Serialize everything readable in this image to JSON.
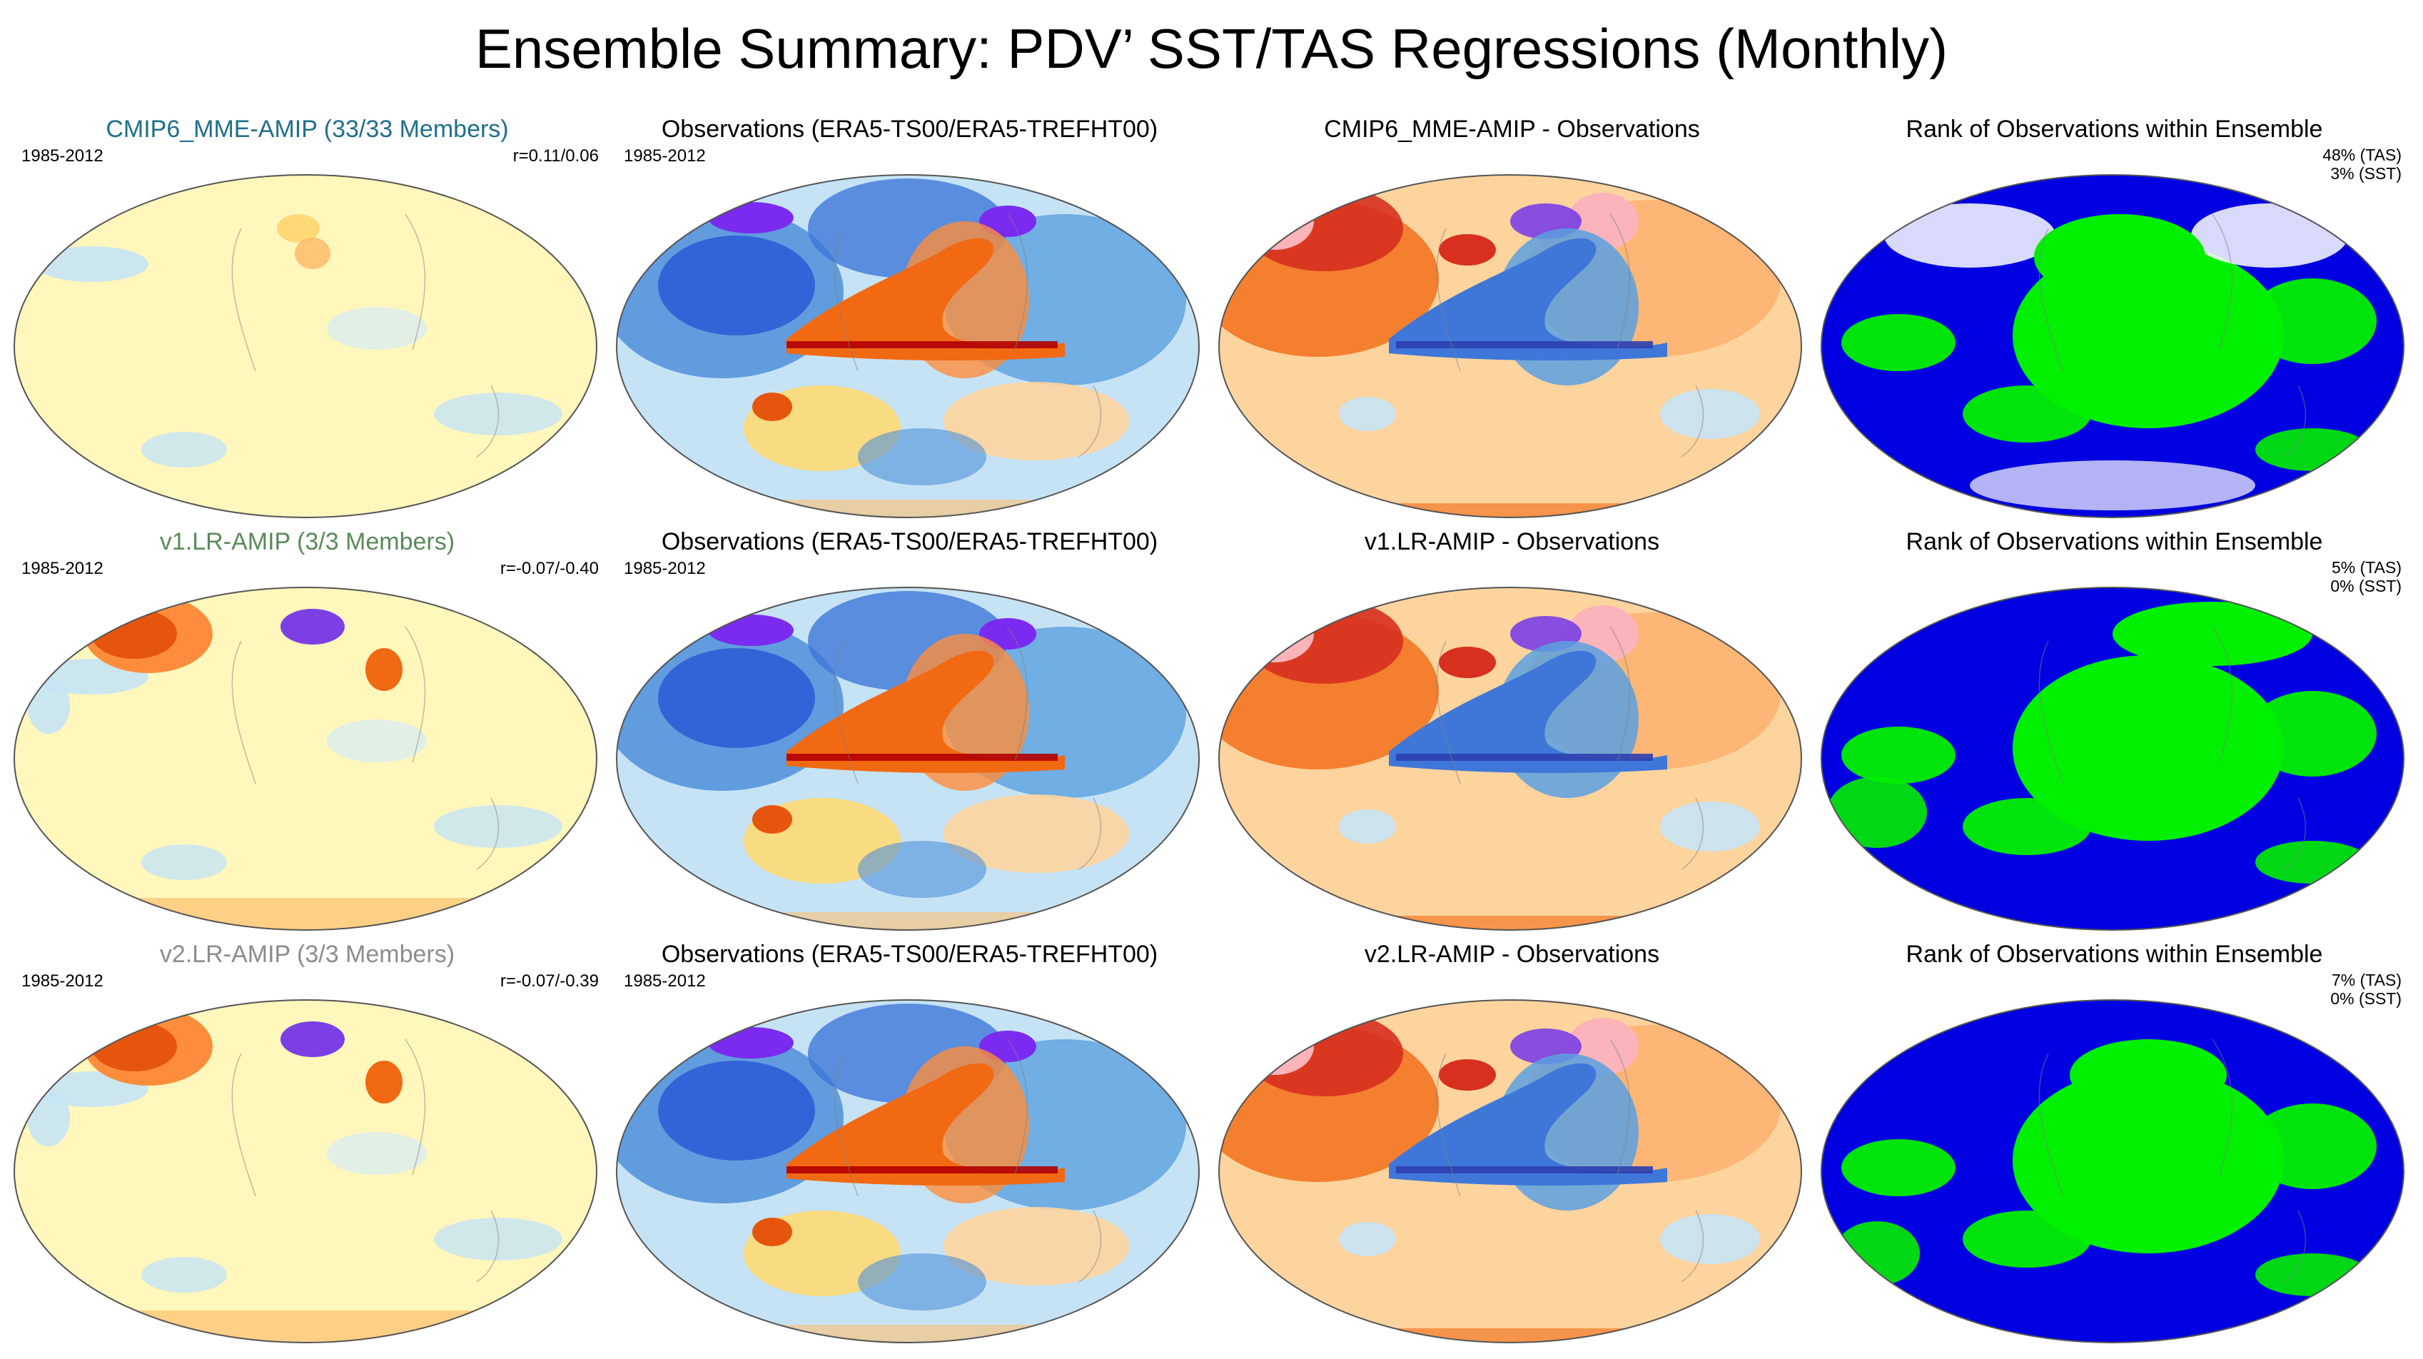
{
  "title": "Ensemble Summary: PDV’ SST/TAS Regressions (Monthly)",
  "colors": {
    "cmip6": "#1f6f8b",
    "v1": "#5a8a5a",
    "v2": "#8c8c8c"
  },
  "rows": [
    {
      "model": {
        "title": "CMIP6_MME-AMIP (33/33 Members)",
        "period": "1985-2012",
        "corr": "r=0.11/0.06"
      },
      "obs": {
        "title": "Observations (ERA5-TS00/ERA5-TREFHT00)",
        "period": "1985-2012"
      },
      "diff": {
        "title": "CMIP6_MME-AMIP - Observations"
      },
      "rank": {
        "title": "Rank of Observations within Ensemble",
        "tas": "48% (TAS)",
        "sst": "3% (SST)"
      }
    },
    {
      "model": {
        "title": "v1.LR-AMIP (3/3 Members)",
        "period": "1985-2012",
        "corr": "r=-0.07/-0.40"
      },
      "obs": {
        "title": "Observations (ERA5-TS00/ERA5-TREFHT00)",
        "period": "1985-2012"
      },
      "diff": {
        "title": "v1.LR-AMIP - Observations"
      },
      "rank": {
        "title": "Rank of Observations within Ensemble",
        "tas": "5% (TAS)",
        "sst": "0% (SST)"
      }
    },
    {
      "model": {
        "title": "v2.LR-AMIP (3/3 Members)",
        "period": "1985-2012",
        "corr": "r=-0.07/-0.39"
      },
      "obs": {
        "title": "Observations (ERA5-TS00/ERA5-TREFHT00)",
        "period": "1985-2012"
      },
      "diff": {
        "title": "v2.LR-AMIP - Observations"
      },
      "rank": {
        "title": "Rank of Observations within Ensemble",
        "tas": "7% (TAS)",
        "sst": "0% (SST)"
      }
    }
  ]
}
